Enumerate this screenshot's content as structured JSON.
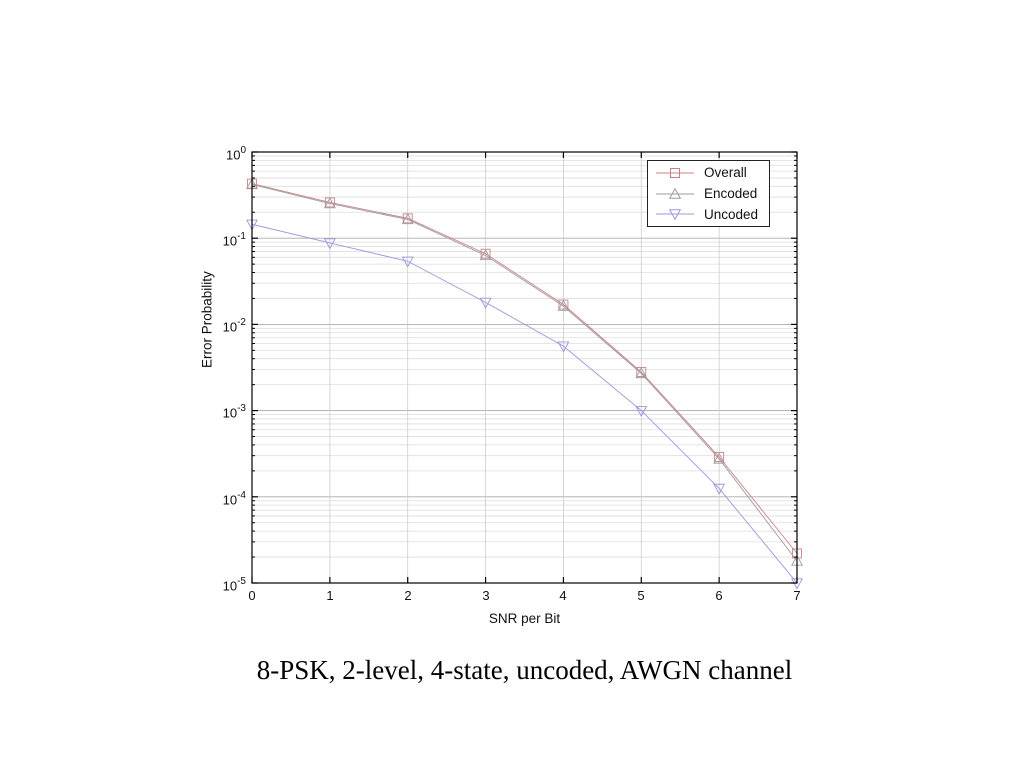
{
  "chart_data": {
    "type": "line",
    "yscale": "log",
    "title": "8-PSK, 2-level, 4-state, uncoded, AWGN channel",
    "xlabel": "SNR per Bit",
    "ylabel": "Error Probability",
    "xlim": [
      0,
      7
    ],
    "ylim": [
      1e-05,
      1
    ],
    "grid": true,
    "legend_position": "top-right",
    "x": [
      0,
      1,
      2,
      3,
      4,
      5,
      6,
      7
    ],
    "x_ticks": [
      0,
      1,
      2,
      3,
      4,
      5,
      6,
      7
    ],
    "x_tick_labels": [
      "0",
      "1",
      "2",
      "3",
      "4",
      "5",
      "6",
      "7"
    ],
    "y_tick_base": "10",
    "y_tick_exponents": [
      "0",
      "-1",
      "-2",
      "-3",
      "-4",
      "-5"
    ],
    "series": [
      {
        "name": "Overall",
        "marker": "square",
        "color": "#cc8282",
        "values": [
          0.43,
          0.26,
          0.17,
          0.066,
          0.017,
          0.0028,
          0.00029,
          2.2e-05
        ]
      },
      {
        "name": "Encoded",
        "marker": "triangle-up",
        "color": "#9c9ca1",
        "values": [
          0.42,
          0.252,
          0.165,
          0.063,
          0.0163,
          0.0027,
          0.000275,
          1.8e-05
        ]
      },
      {
        "name": "Uncoded",
        "marker": "triangle-down",
        "color": "#9898dc",
        "values": [
          0.145,
          0.088,
          0.054,
          0.018,
          0.0056,
          0.001,
          0.000125,
          1e-05
        ]
      }
    ],
    "colors": {
      "axis": "#000000",
      "grid_major": "#ababab",
      "grid_minor": "#dedede",
      "grid_vertical": "#cccccc"
    }
  }
}
